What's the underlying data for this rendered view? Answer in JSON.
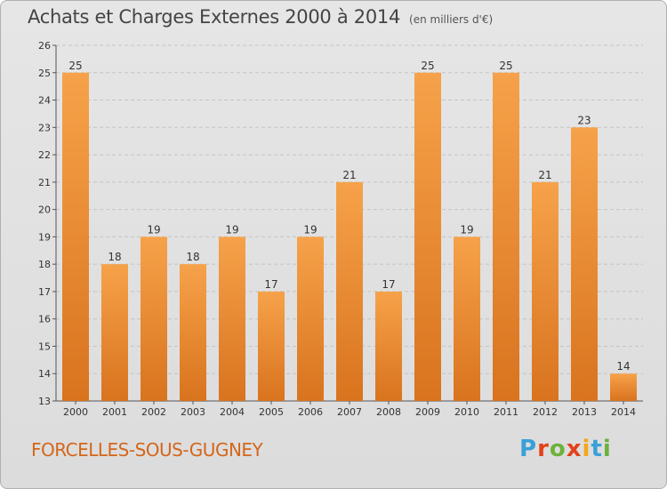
{
  "header": {
    "title": "Achats et Charges Externes 2000 à 2014",
    "subtitle": "(en milliers d'€)"
  },
  "footer": {
    "commune": "FORCELLES-SOUS-GUGNEY",
    "logo_text": "Proxiti",
    "logo_colors": [
      "#3aa0d8",
      "#e2421a",
      "#6bb23a",
      "#e2421a",
      "#f2a71b",
      "#3aa0d8",
      "#6bb23a"
    ]
  },
  "colors": {
    "bar_top": "#f6a24a",
    "bar_bottom": "#d9731e",
    "grid": "#c4c4c4",
    "commune_text": "#d4661a"
  },
  "chart_data": {
    "type": "bar",
    "title": "Achats et Charges Externes 2000 à 2014",
    "subtitle": "(en milliers d'€)",
    "categories": [
      "2000",
      "2001",
      "2002",
      "2003",
      "2004",
      "2005",
      "2006",
      "2007",
      "2008",
      "2009",
      "2010",
      "2011",
      "2012",
      "2013",
      "2014"
    ],
    "values": [
      25,
      18,
      19,
      18,
      19,
      17,
      19,
      21,
      17,
      25,
      19,
      25,
      21,
      23,
      14
    ],
    "ylim": [
      13,
      26
    ],
    "yticks": [
      13,
      14,
      15,
      16,
      17,
      18,
      19,
      20,
      21,
      22,
      23,
      24,
      25,
      26
    ],
    "grid": "horizontal dashed",
    "legend": "none"
  }
}
